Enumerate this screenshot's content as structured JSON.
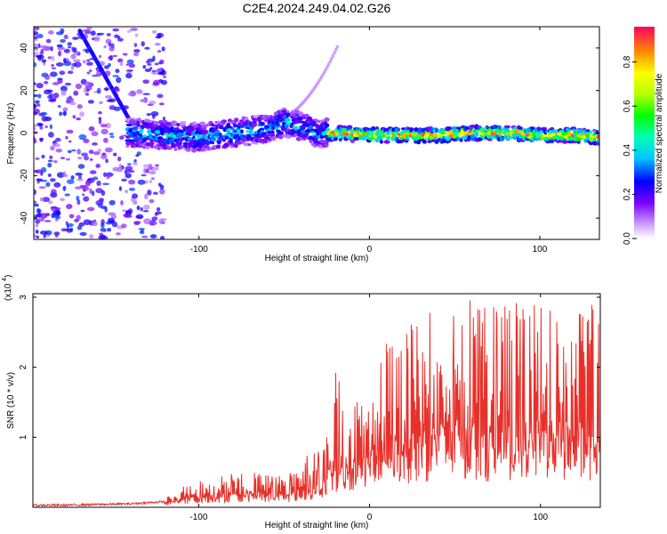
{
  "title": "C2E4.2024.249.04.02.G26",
  "chart_data": [
    {
      "type": "heatmap",
      "xlabel": "Height of straight line (km)",
      "ylabel": "Frequency (Hz)",
      "xlim": [
        -197,
        135
      ],
      "ylim": [
        -50,
        50
      ],
      "x_ticks": [
        -100,
        0,
        100
      ],
      "x_tick_labels": [
        "-100",
        "0",
        "100"
      ],
      "y_ticks": [
        -40,
        -20,
        0,
        20,
        40
      ],
      "y_tick_labels": [
        "-40",
        "-20",
        "0",
        "20",
        "40"
      ],
      "colorbar": {
        "label": "Normalized spectral amplitude",
        "range": [
          0,
          0.96
        ],
        "ticks": [
          0.0,
          0.2,
          0.4,
          0.6,
          0.8
        ],
        "tick_labels": [
          "0.0",
          "0.2",
          "0.4",
          "0.6",
          "0.8"
        ]
      },
      "regions": [
        {
          "x": [
            -197,
            -120
          ],
          "y": [
            -50,
            50
          ],
          "amplitude": 0.15
        },
        {
          "x": [
            -140,
            -25
          ],
          "y": [
            -6,
            6
          ],
          "amplitude": 0.3
        },
        {
          "x": [
            -25,
            135
          ],
          "y": [
            -3,
            3
          ],
          "amplitude": 0.6
        },
        {
          "x": [
            -25,
            135
          ],
          "y": [
            -1,
            1
          ],
          "amplitude": 0.9
        }
      ],
      "ridge": {
        "x": [
          -140,
          -120,
          -100,
          -80,
          -60,
          -50,
          -40,
          -30,
          -20,
          0,
          20,
          40,
          60,
          80,
          100,
          120,
          135
        ],
        "y": [
          0,
          -1,
          -2,
          0,
          2,
          5,
          3,
          0,
          0,
          -1,
          -1,
          -1,
          0,
          0,
          -1,
          -1,
          -2
        ]
      }
    },
    {
      "type": "line",
      "xlabel": "Height of straight line (km)",
      "ylabel": "SNR (10 * v/v)",
      "yunit": "(x10^4)",
      "xlim": [
        -197,
        135
      ],
      "ylim": [
        0,
        3.05
      ],
      "x_ticks": [
        -100,
        0,
        100
      ],
      "x_tick_labels": [
        "-100",
        "0",
        "100"
      ],
      "y_ticks": [
        1,
        2,
        3
      ],
      "y_tick_labels": [
        "1",
        "2",
        "3"
      ],
      "series": [
        {
          "color": "#e8302a",
          "x": [
            -197,
            -180,
            -160,
            -140,
            -120,
            -110,
            -100,
            -90,
            -80,
            -70,
            -60,
            -50,
            -40,
            -35,
            -30,
            -25,
            -20,
            -15,
            -10,
            -5,
            0,
            5,
            10,
            20,
            30,
            40,
            50,
            60,
            70,
            80,
            90,
            100,
            110,
            120,
            130,
            135
          ],
          "y": [
            0.03,
            0.03,
            0.04,
            0.05,
            0.08,
            0.18,
            0.22,
            0.26,
            0.28,
            0.3,
            0.3,
            0.28,
            0.35,
            0.42,
            0.45,
            0.55,
            0.7,
            0.85,
            0.9,
            0.95,
            1.0,
            1.2,
            1.3,
            1.35,
            1.4,
            1.45,
            1.5,
            1.5,
            1.45,
            1.5,
            1.55,
            1.5,
            1.5,
            1.45,
            1.5,
            1.4
          ],
          "envelope": [
            0.04,
            0.05,
            0.06,
            0.08,
            0.12,
            0.3,
            0.38,
            0.45,
            0.48,
            0.5,
            0.48,
            0.45,
            0.6,
            0.9,
            0.8,
            1.1,
            2.15,
            1.6,
            1.4,
            1.8,
            1.9,
            2.2,
            2.4,
            2.5,
            2.75,
            2.8,
            2.85,
            3.0,
            2.85,
            2.9,
            2.95,
            2.9,
            2.85,
            2.8,
            3.0,
            2.6
          ]
        }
      ]
    }
  ]
}
